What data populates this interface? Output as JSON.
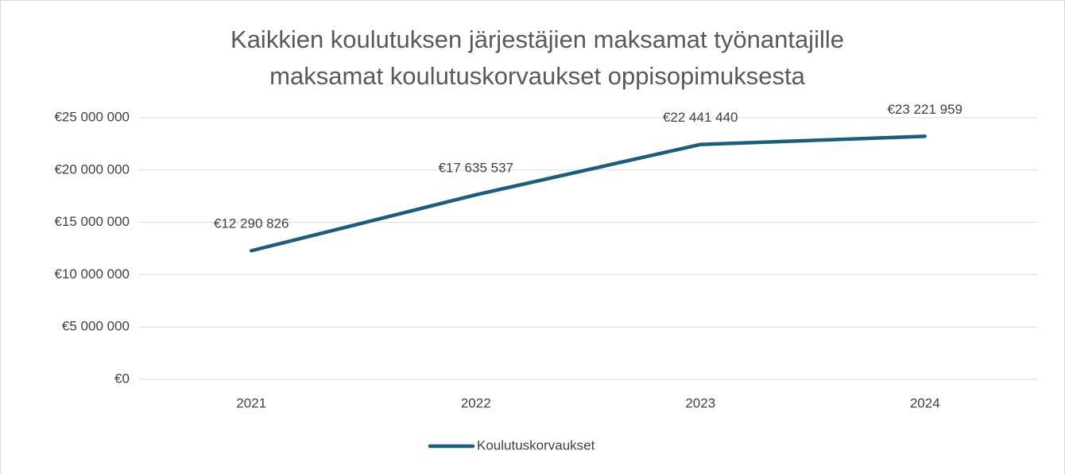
{
  "chart_data": {
    "type": "line",
    "title": [
      "Kaikkien koulutuksen järjestäjien maksamat työnantajille",
      "maksamat koulutuskorvaukset oppisopimuksesta"
    ],
    "categories": [
      "2021",
      "2022",
      "2023",
      "2024"
    ],
    "series": [
      {
        "name": "Koulutuskorvaukset",
        "color": "#1b5e7b",
        "values": [
          12290826,
          17635537,
          22441440,
          23221959
        ],
        "value_labels": [
          "€12 290 826",
          "€17 635 537",
          "€22 441 440",
          "€23 221 959"
        ]
      }
    ],
    "ylim": [
      0,
      25000000
    ],
    "yticks": [
      {
        "value": 0,
        "label": "€0"
      },
      {
        "value": 5000000,
        "label": "€5 000 000"
      },
      {
        "value": 10000000,
        "label": "€10 000 000"
      },
      {
        "value": 15000000,
        "label": "€15 000 000"
      },
      {
        "value": 20000000,
        "label": "€20 000 000"
      },
      {
        "value": 25000000,
        "label": "€25 000 000"
      }
    ],
    "grid": true,
    "legend": "bottom"
  }
}
